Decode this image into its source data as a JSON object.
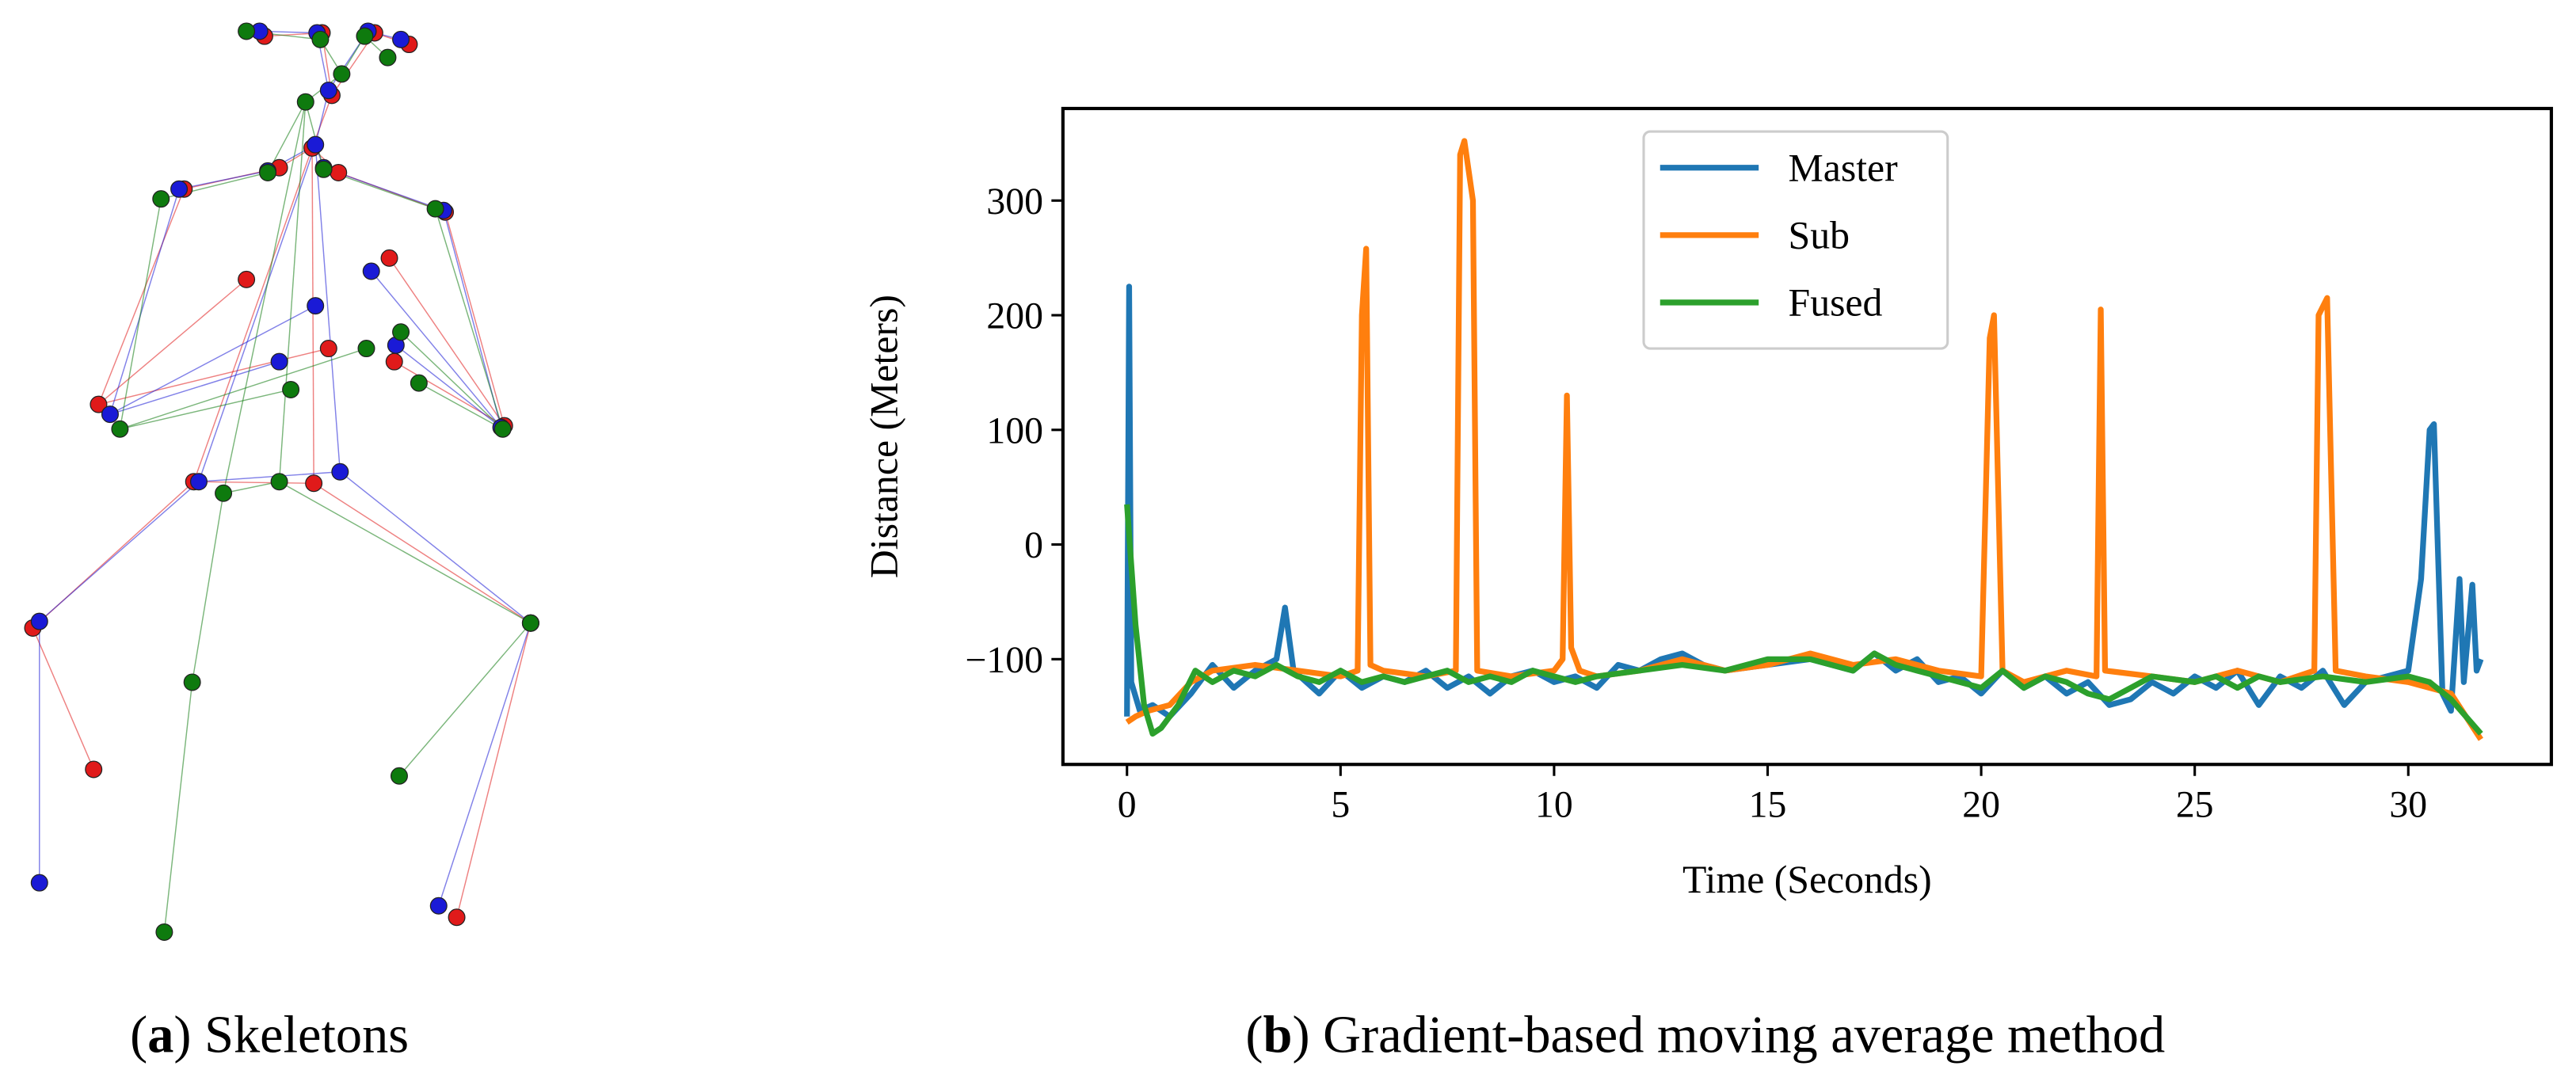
{
  "chart_data": [
    {
      "type": "scatter",
      "xlim": [
        0,
        340
      ],
      "ylim": [
        600,
        0
      ],
      "caption": [
        "(",
        "a",
        ") Skeletons"
      ],
      "series": [
        {
          "color": "#e01a1a",
          "x": [
            202,
            196,
            228,
            161,
            249,
            190,
            170,
            206,
            112,
            271,
            60,
            307,
            118,
            191,
            20,
            323,
            57,
            278,
            150,
            200,
            240,
            237
          ],
          "values": [
            58,
            20,
            20,
            22,
            27,
            90,
            102,
            105,
            115,
            129,
            246,
            259,
            293,
            294,
            382,
            379,
            468,
            558,
            170,
            212,
            220,
            157
          ]
        },
        {
          "color": "#1a1ad6",
          "x": [
            200,
            193,
            224,
            158,
            244,
            192,
            163,
            197,
            109,
            270,
            67,
            305,
            121,
            207,
            24,
            323,
            24,
            267,
            170,
            192,
            241,
            226
          ],
          "values": [
            55,
            20,
            19,
            19,
            24,
            88,
            104,
            102,
            115,
            128,
            252,
            260,
            293,
            287,
            378,
            379,
            537,
            551,
            220,
            186,
            210,
            165
          ]
        },
        {
          "color": "#0e7a0e",
          "x": [
            208,
            195,
            222,
            150,
            236,
            186,
            163,
            197,
            98,
            265,
            73,
            306,
            136,
            170,
            117,
            323,
            100,
            243,
            177,
            223,
            244,
            255
          ],
          "values": [
            45,
            24,
            22,
            19,
            35,
            62,
            105,
            103,
            121,
            127,
            261,
            261,
            300,
            293,
            415,
            379,
            567,
            472,
            237,
            212,
            202,
            233
          ]
        }
      ]
    },
    {
      "type": "line",
      "xlabel": "Time (Seconds)",
      "ylabel": "Distance (Meters)",
      "caption": [
        "(",
        "b",
        ") Gradient-based moving average method"
      ],
      "xlim": [
        -1.5,
        33.35
      ],
      "ylim": [
        -191.8,
        380.3
      ],
      "xticks": [
        0,
        5,
        10,
        15,
        20,
        25,
        30
      ],
      "yticks": [
        {
          "value": -100,
          "label": "−100"
        },
        0,
        100,
        200,
        300
      ],
      "legend": "upper center",
      "series": [
        {
          "name": "Master",
          "color": "#1f77b4",
          "x": [
            0,
            0.05,
            0.1,
            0.3,
            0.6,
            1,
            1.5,
            2,
            2.5,
            3,
            3.5,
            3.7,
            3.9,
            4.5,
            5,
            5.5,
            6,
            6.5,
            7,
            7.5,
            8,
            8.5,
            9,
            9.5,
            10,
            10.5,
            11,
            11.5,
            12,
            12.5,
            13,
            13.5,
            14,
            15,
            16,
            17,
            17.5,
            18,
            18.5,
            19,
            19.5,
            20,
            20.5,
            21,
            21.5,
            22,
            22.5,
            23,
            23.5,
            24,
            24.5,
            25,
            25.5,
            26,
            26.5,
            27,
            27.5,
            28,
            28.5,
            29,
            29.5,
            30,
            30.3,
            30.5,
            30.6,
            30.8,
            31,
            31.2,
            31.3,
            31.5,
            31.6,
            31.7
          ],
          "values": [
            -150,
            225,
            -120,
            -145,
            -140,
            -150,
            -130,
            -105,
            -125,
            -110,
            -100,
            -55,
            -110,
            -130,
            -110,
            -125,
            -115,
            -120,
            -110,
            -125,
            -115,
            -130,
            -115,
            -110,
            -120,
            -115,
            -125,
            -105,
            -110,
            -100,
            -95,
            -105,
            -110,
            -105,
            -100,
            -110,
            -95,
            -110,
            -100,
            -120,
            -115,
            -130,
            -110,
            -125,
            -115,
            -130,
            -120,
            -140,
            -135,
            -120,
            -130,
            -115,
            -125,
            -110,
            -140,
            -115,
            -125,
            -110,
            -140,
            -120,
            -115,
            -110,
            -30,
            100,
            105,
            -130,
            -145,
            -30,
            -120,
            -35,
            -110,
            -100
          ]
        },
        {
          "name": "Sub",
          "color": "#ff7f0e",
          "x": [
            0,
            0.2,
            0.5,
            1,
            1.5,
            2,
            3,
            4,
            5,
            5.4,
            5.5,
            5.6,
            5.7,
            6,
            7,
            7.7,
            7.8,
            7.9,
            8.1,
            8.2,
            9,
            10,
            10.2,
            10.3,
            10.4,
            10.6,
            11,
            12,
            13,
            14,
            15,
            16,
            17,
            18,
            19,
            20,
            20.2,
            20.3,
            20.5,
            21,
            22,
            22.7,
            22.8,
            22.9,
            24,
            25,
            26,
            27,
            27.8,
            27.9,
            28.1,
            28.3,
            29,
            30,
            31,
            31.7
          ],
          "values": [
            -155,
            -150,
            -145,
            -140,
            -120,
            -110,
            -105,
            -110,
            -115,
            -110,
            200,
            258,
            -105,
            -110,
            -115,
            -110,
            340,
            352,
            300,
            -110,
            -115,
            -110,
            -100,
            130,
            -90,
            -110,
            -115,
            -110,
            -100,
            -110,
            -105,
            -95,
            -105,
            -100,
            -110,
            -115,
            180,
            200,
            -110,
            -120,
            -110,
            -115,
            205,
            -110,
            -115,
            -120,
            -110,
            -120,
            -110,
            200,
            215,
            -110,
            -115,
            -120,
            -130,
            -170
          ]
        },
        {
          "name": "Fused",
          "color": "#2ca02c",
          "x": [
            0,
            0.2,
            0.4,
            0.6,
            0.8,
            1.2,
            1.6,
            2,
            2.5,
            3,
            3.5,
            4,
            4.5,
            5,
            5.5,
            6,
            6.5,
            7,
            7.5,
            8,
            8.5,
            9,
            9.5,
            10,
            10.5,
            11,
            12,
            13,
            14,
            15,
            16,
            17,
            17.5,
            18,
            18.5,
            19,
            20,
            20.5,
            21,
            21.5,
            22,
            22.5,
            23,
            23.5,
            24,
            25,
            25.5,
            26,
            26.5,
            27,
            28,
            29,
            30,
            30.5,
            31,
            31.7
          ],
          "values": [
            35,
            -70,
            -140,
            -165,
            -160,
            -140,
            -110,
            -120,
            -110,
            -115,
            -105,
            -115,
            -120,
            -110,
            -120,
            -115,
            -120,
            -115,
            -110,
            -120,
            -115,
            -120,
            -110,
            -115,
            -120,
            -115,
            -110,
            -105,
            -110,
            -100,
            -100,
            -110,
            -95,
            -105,
            -110,
            -115,
            -125,
            -110,
            -125,
            -115,
            -120,
            -130,
            -135,
            -125,
            -115,
            -120,
            -115,
            -125,
            -115,
            -120,
            -115,
            -120,
            -115,
            -120,
            -135,
            -165
          ]
        }
      ]
    }
  ]
}
